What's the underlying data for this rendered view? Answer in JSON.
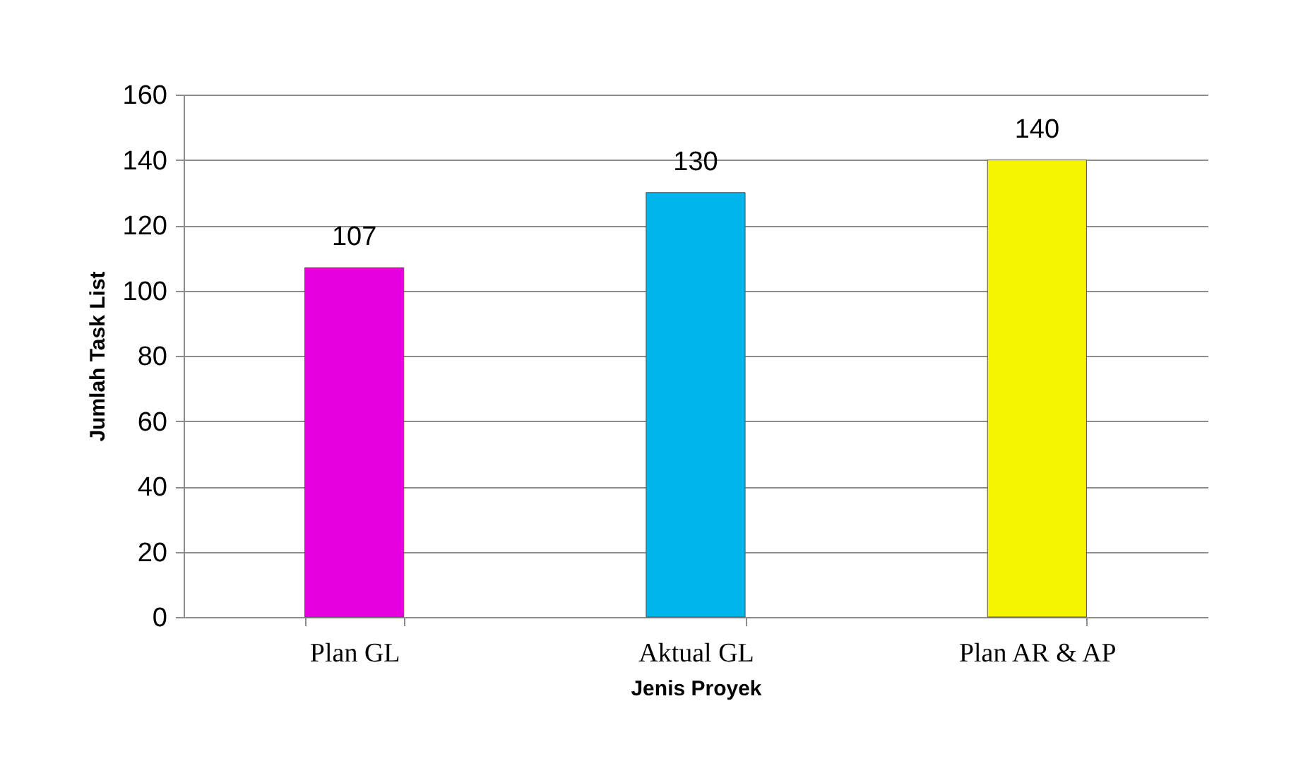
{
  "chart_data": {
    "type": "bar",
    "xlabel": "Jenis Proyek",
    "ylabel": "Jumlah Task List",
    "categories": [
      "Plan GL",
      "Aktual GL",
      "Plan AR & AP"
    ],
    "values": [
      107,
      130,
      140
    ],
    "colors": [
      "#e600e0",
      "#00b4ec",
      "#f5f500"
    ],
    "ylim": [
      0,
      160
    ],
    "yticks": [
      0,
      20,
      40,
      60,
      80,
      100,
      120,
      140,
      160
    ],
    "grid": "y",
    "data_labels": true
  }
}
